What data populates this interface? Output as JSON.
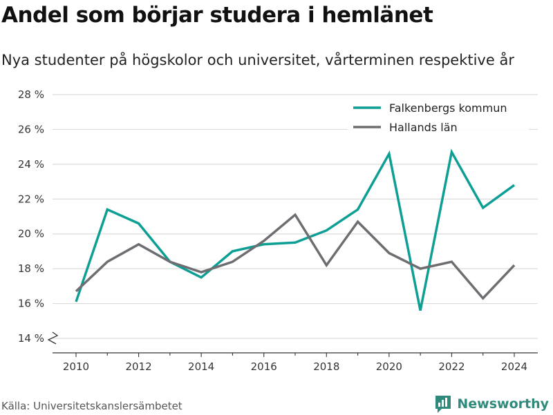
{
  "title": "Andel som börjar studera i hemlänet",
  "subtitle": "Nya studenter på högskolor och universitet, vårterminen respektive år",
  "source": "Källa: Universitetskanslersämbetet",
  "brand": {
    "name": "Newsworthy",
    "icon": "newsworthy-logo-icon",
    "color": "#2f8a7b"
  },
  "chart_data": {
    "type": "line",
    "x": [
      2010,
      2011,
      2012,
      2013,
      2014,
      2015,
      2016,
      2017,
      2018,
      2019,
      2020,
      2021,
      2022,
      2023,
      2024
    ],
    "series": [
      {
        "name": "Falkenbergs kommun",
        "color": "#0d9e94",
        "values": [
          16.1,
          21.4,
          20.6,
          18.4,
          17.5,
          19.0,
          19.4,
          19.5,
          20.2,
          21.4,
          24.6,
          15.6,
          24.7,
          21.5,
          22.8
        ]
      },
      {
        "name": "Hallands län",
        "color": "#6e6e72",
        "values": [
          16.7,
          18.4,
          19.4,
          18.4,
          17.8,
          18.4,
          19.6,
          21.1,
          18.2,
          20.7,
          18.9,
          18.0,
          18.4,
          16.3,
          18.2
        ]
      }
    ],
    "x_ticks": [
      "2010",
      "2012",
      "2014",
      "2016",
      "2018",
      "2020",
      "2022",
      "2024"
    ],
    "y_ticks": [
      "14 %",
      "16 %",
      "18 %",
      "20 %",
      "22 %",
      "24 %",
      "26 %",
      "28 %"
    ],
    "ylim": [
      14,
      28
    ],
    "y_axis_break": true,
    "grid": true,
    "legend": "top-right"
  }
}
